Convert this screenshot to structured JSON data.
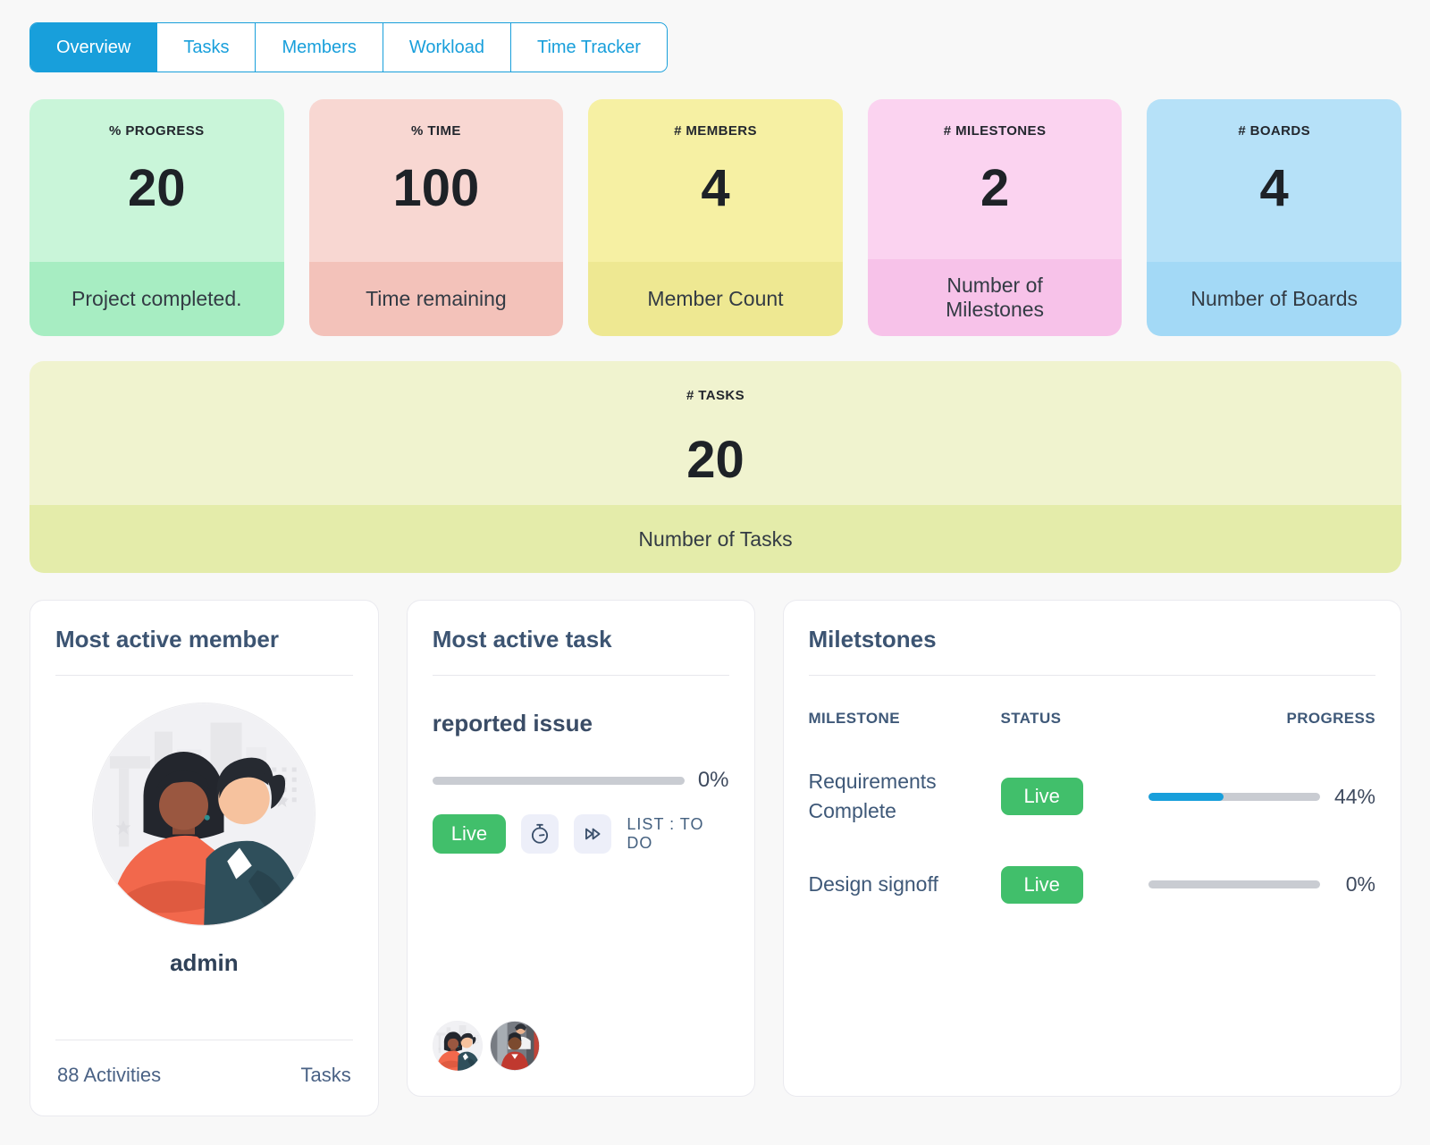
{
  "tabs": [
    {
      "label": "Overview",
      "active": true
    },
    {
      "label": "Tasks",
      "active": false
    },
    {
      "label": "Members",
      "active": false
    },
    {
      "label": "Workload",
      "active": false
    },
    {
      "label": "Time Tracker",
      "active": false
    }
  ],
  "stats": [
    {
      "label": "% PROGRESS",
      "value": "20",
      "description": "Project completed.",
      "bg_body": "#c9f5d9",
      "bg_footer": "#a7edc2"
    },
    {
      "label": "% TIME",
      "value": "100",
      "description": "Time remaining",
      "bg_body": "#f8d7d2",
      "bg_footer": "#f3c2ba"
    },
    {
      "label": "# MEMBERS",
      "value": "4",
      "description": "Member Count",
      "bg_body": "#f6f0a3",
      "bg_footer": "#eee892"
    },
    {
      "label": "# MILESTONES",
      "value": "2",
      "description": "Number of Milestones",
      "bg_body": "#fbd3f0",
      "bg_footer": "#f7c2e9"
    },
    {
      "label": "# BOARDS",
      "value": "4",
      "description": "Number of Boards",
      "bg_body": "#b6e1f8",
      "bg_footer": "#a3d9f6"
    }
  ],
  "tasks_stat": {
    "label": "# TASKS",
    "value": "20",
    "description": "Number of Tasks",
    "bg_body": "#f0f3cf",
    "bg_footer": "#e4ecaa"
  },
  "most_active_member": {
    "title": "Most active member",
    "name": "admin",
    "activities": "88 Activities",
    "tasks_label": "Tasks",
    "avatar": "two-people-back-to-back-illustration"
  },
  "most_active_task": {
    "title": "Most active task",
    "task_name": "reported issue",
    "progress_percent": 0,
    "progress_label": "0%",
    "live_label": "Live",
    "list_label": "LIST : TO DO",
    "icons": [
      "stopwatch-icon",
      "fast-forward-icon"
    ],
    "assignee_avatars": [
      "two-people-illustration",
      "barber-scene-illustration"
    ]
  },
  "milestones": {
    "title": "Miletstones",
    "columns": [
      "MILESTONE",
      "STATUS",
      "PROGRESS"
    ],
    "rows": [
      {
        "name": "Requirements Complete",
        "status": "Live",
        "progress_percent": 44,
        "progress_label": "44%"
      },
      {
        "name": "Design signoff",
        "status": "Live",
        "progress_percent": 0,
        "progress_label": "0%"
      }
    ]
  },
  "colors": {
    "accent_blue": "#189fdb",
    "live_green": "#41bf6b",
    "progress_blue": "#189fdb",
    "track_gray": "#c9ccd2",
    "page_background": "#f8f8f8",
    "panel_border": "#eaeaef",
    "heading_slate": "#3c5472"
  }
}
